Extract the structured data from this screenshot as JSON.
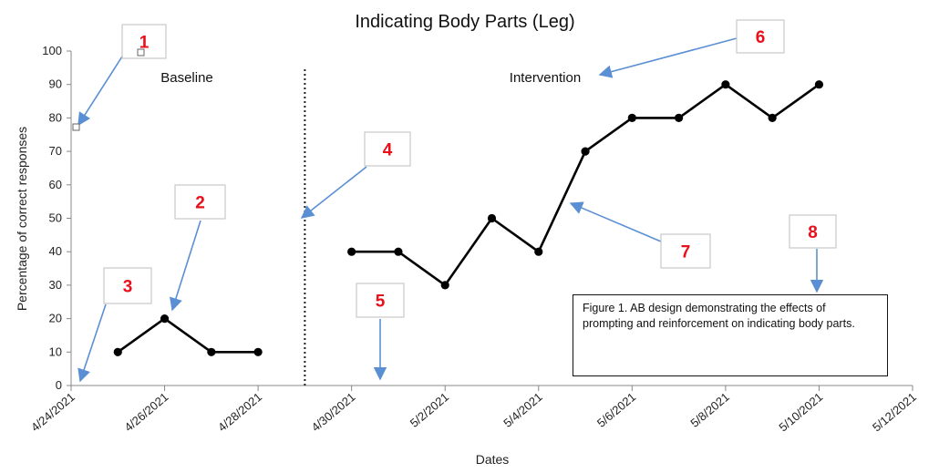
{
  "chart_data": {
    "type": "line",
    "title": "Indicating Body Parts (Leg)",
    "xlabel": "Dates",
    "ylabel": "Percentage of correct responses",
    "ylim": [
      0,
      100
    ],
    "yticks": [
      "0",
      "10",
      "20",
      "30",
      "40",
      "50",
      "60",
      "70",
      "80",
      "90",
      "100"
    ],
    "xticks": [
      "4/24/2021",
      "4/26/2021",
      "4/28/2021",
      "4/30/2021",
      "5/2/2021",
      "5/4/2021",
      "5/6/2021",
      "5/8/2021",
      "5/10/2021",
      "5/12/2021"
    ],
    "xlim": [
      "4/24/2021",
      "5/12/2021"
    ],
    "grid": false,
    "phase_change": "4/29/2021",
    "phases": [
      "Baseline",
      "Intervention"
    ],
    "series": [
      {
        "phase": "Baseline",
        "x": [
          "4/25/2021",
          "4/26/2021",
          "4/27/2021",
          "4/28/2021"
        ],
        "values": [
          10,
          20,
          10,
          10
        ]
      },
      {
        "phase": "Intervention",
        "x": [
          "4/30/2021",
          "5/1/2021",
          "5/2/2021",
          "5/3/2021",
          "5/4/2021",
          "5/5/2021",
          "5/6/2021",
          "5/7/2021",
          "5/8/2021",
          "5/9/2021",
          "5/10/2021"
        ],
        "values": [
          40,
          40,
          30,
          50,
          40,
          70,
          80,
          80,
          90,
          80,
          90
        ]
      }
    ],
    "caption": "Figure 1. AB design demonstrating the effects of prompting and reinforcement on indicating body parts.",
    "markers": [
      "1",
      "2",
      "3",
      "4",
      "5",
      "6",
      "7",
      "8"
    ]
  }
}
